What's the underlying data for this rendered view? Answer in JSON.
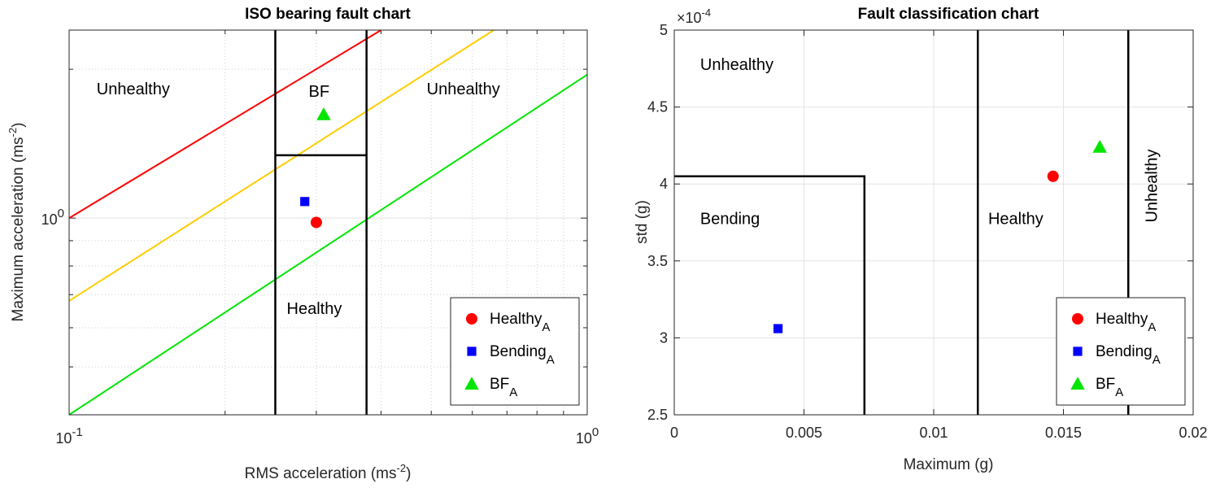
{
  "chart_data": [
    {
      "type": "scatter",
      "title": "ISO bearing fault chart",
      "xlabel": "RMS acceleration (ms",
      "xlabel_sup": "-2",
      "xlabel_end": ")",
      "ylabel": "Maximum acceleration (ms",
      "ylabel_sup": "-2",
      "ylabel_end": ")",
      "xscale": "log",
      "yscale": "log",
      "xlim": [
        0.1,
        1.0
      ],
      "ylim": [
        0.4,
        2.4
      ],
      "xticks": [
        {
          "value": 0.1,
          "base": "10",
          "exp": "-1"
        },
        {
          "value": 1.0,
          "base": "10",
          "exp": "0"
        }
      ],
      "yticks": [
        {
          "value": 1.0,
          "base": "10",
          "exp": "0"
        }
      ],
      "grid": true,
      "lines": [
        {
          "color": "#ff0000",
          "points": [
            [
              0.1,
              1.0
            ],
            [
              0.4,
              2.4
            ]
          ]
        },
        {
          "color": "#ffcc00",
          "points": [
            [
              0.1,
              0.68
            ],
            [
              0.66,
              2.4
            ]
          ]
        },
        {
          "color": "#00e600",
          "points": [
            [
              0.1,
              0.4
            ],
            [
              1.0,
              1.95
            ]
          ]
        }
      ],
      "boundaries": [
        {
          "points": [
            [
              0.25,
              0.4
            ],
            [
              0.25,
              2.4
            ]
          ]
        },
        {
          "points": [
            [
              0.375,
              0.4
            ],
            [
              0.375,
              2.4
            ]
          ]
        },
        {
          "points": [
            [
              0.25,
              1.34
            ],
            [
              0.375,
              1.34
            ]
          ]
        }
      ],
      "regions": [
        {
          "label": "Unhealthy",
          "x": 0.113,
          "y": 1.78,
          "vertical": false
        },
        {
          "label": "BF",
          "x": 0.29,
          "y": 1.76,
          "vertical": false
        },
        {
          "label": "Unhealthy",
          "x": 0.49,
          "y": 1.78,
          "vertical": false
        },
        {
          "label": "Healthy",
          "x": 0.263,
          "y": 0.64,
          "vertical": false
        }
      ],
      "series": [
        {
          "name": "Healthy",
          "sub": "A",
          "marker": "circle",
          "color": "#ff0000",
          "x": [
            0.3
          ],
          "y": [
            0.98
          ]
        },
        {
          "name": "Bending",
          "sub": "A",
          "marker": "square",
          "color": "#0000ff",
          "x": [
            0.285
          ],
          "y": [
            1.08
          ]
        },
        {
          "name": "BF",
          "sub": "A",
          "marker": "triangle",
          "color": "#00e600",
          "x": [
            0.31
          ],
          "y": [
            1.62
          ]
        }
      ],
      "legend_position": "bottom-right"
    },
    {
      "type": "scatter",
      "title": "Fault classification chart",
      "xlabel": "Maximum (g)",
      "ylabel": "std (g)",
      "xscale": "linear",
      "yscale": "linear",
      "xlim": [
        0,
        0.02
      ],
      "ylim": [
        0.00025,
        0.0005
      ],
      "xticks": [
        "0",
        "0.005",
        "0.01",
        "0.015",
        "0.02"
      ],
      "xtick_values": [
        0,
        0.005,
        0.01,
        0.015,
        0.02
      ],
      "yticks": [
        "2.5",
        "3",
        "3.5",
        "4",
        "4.5",
        "5"
      ],
      "ytick_values": [
        0.00025,
        0.0003,
        0.00035,
        0.0004,
        0.00045,
        0.0005
      ],
      "y_exponent_base": "×10",
      "y_exponent": "-4",
      "grid": true,
      "boundaries": [
        {
          "points": [
            [
              0,
              0.000405
            ],
            [
              0.00733,
              0.000405
            ],
            [
              0.00733,
              0.00025
            ]
          ]
        },
        {
          "points": [
            [
              0.0117,
              0.00025
            ],
            [
              0.0117,
              0.0005
            ]
          ]
        },
        {
          "points": [
            [
              0.0175,
              0.00025
            ],
            [
              0.0175,
              0.0005
            ]
          ]
        }
      ],
      "regions": [
        {
          "label": "Unhealthy",
          "x": 0.001,
          "y": 0.000474,
          "vertical": false
        },
        {
          "label": "Bending",
          "x": 0.001,
          "y": 0.000374,
          "vertical": false
        },
        {
          "label": "Healthy",
          "x": 0.0121,
          "y": 0.000374,
          "vertical": false
        },
        {
          "label": "Unhealthy",
          "x": 0.0186,
          "y": 0.000375,
          "vertical": true
        }
      ],
      "series": [
        {
          "name": "Healthy",
          "sub": "A",
          "marker": "circle",
          "color": "#ff0000",
          "x": [
            0.0146
          ],
          "y": [
            0.000405
          ]
        },
        {
          "name": "Bending",
          "sub": "A",
          "marker": "square",
          "color": "#0000ff",
          "x": [
            0.004
          ],
          "y": [
            0.000306
          ]
        },
        {
          "name": "BF",
          "sub": "A",
          "marker": "triangle",
          "color": "#00e600",
          "x": [
            0.0164
          ],
          "y": [
            0.000424
          ]
        }
      ],
      "legend_position": "bottom-right"
    }
  ]
}
